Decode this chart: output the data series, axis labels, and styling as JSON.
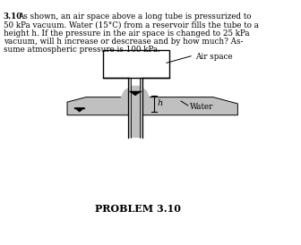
{
  "bg_color": "#ffffff",
  "text_color": "#000000",
  "gray_fill": "#c0c0c0",
  "light_gray": "#d4d4d4",
  "title_text": "PROBLEM 3.10",
  "problem_text_line0_bold": "3.10",
  "problem_text_line0_rest": "As shown, an air space above a long tube is pressurized to",
  "problem_text_lines": [
    "50 kPa vacuum. Water (15°C) from a reservoir fills the tube to a",
    "height h. If the pressure in the air space is changed to 25 kPa",
    "vacuum, will h increase or descrease and by how much? As-",
    "sume atmospheric pressure is 100 kPa."
  ],
  "label_air_space": "Air space",
  "label_water": "Water",
  "label_h": "h"
}
